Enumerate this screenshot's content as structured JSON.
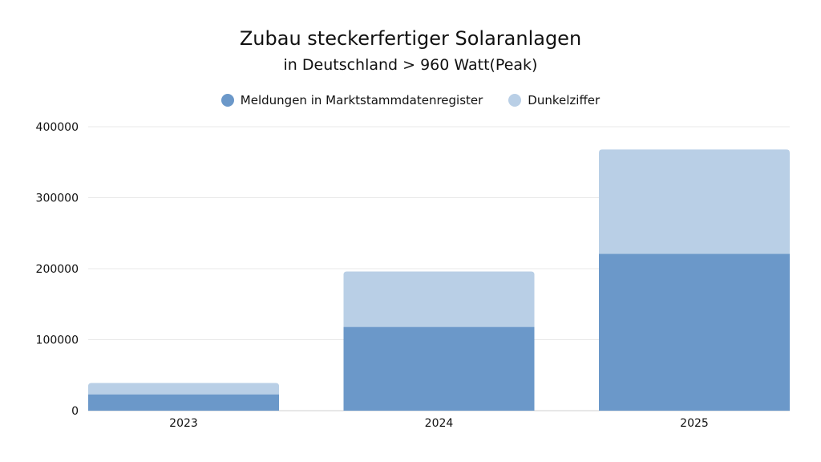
{
  "chart_data": {
    "type": "bar",
    "stacked": true,
    "title": "Zubau steckerfertiger Solaranlagen",
    "subtitle": "in Deutschland > 960 Watt(Peak)",
    "categories": [
      "2023",
      "2024",
      "2025"
    ],
    "series": [
      {
        "name": "Meldungen in Marktstammdatenregister",
        "color": "#6b98c9",
        "values": [
          23000,
          118000,
          221000
        ]
      },
      {
        "name": "Dunkelziffer",
        "color": "#b9cfe6",
        "values": [
          16000,
          78000,
          147000
        ]
      }
    ],
    "ylim": [
      0,
      400000
    ],
    "yticks": [
      "0",
      "100000",
      "200000",
      "300000",
      "400000"
    ],
    "grid": true,
    "legend": "top"
  }
}
